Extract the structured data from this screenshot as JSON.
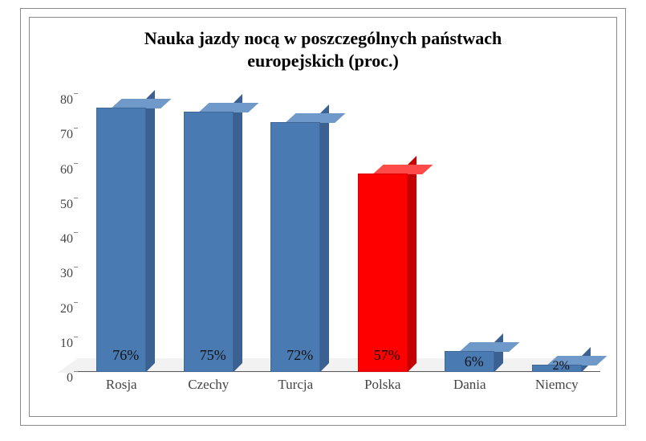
{
  "chart": {
    "type": "bar-3d",
    "title_line1": "Nauka jazdy nocą w poszczególnych państwach",
    "title_line2": "europejskich (proc.)",
    "title_fontsize": 22,
    "title_fontweight": "bold",
    "font_family": "Times New Roman",
    "background_color": "#ffffff",
    "border_color": "#8a8a8a",
    "axis_text_color": "#444444",
    "ylim": [
      0,
      80
    ],
    "ytick_step": 10,
    "yticks": [
      {
        "v": 0,
        "label": "0"
      },
      {
        "v": 10,
        "label": "10"
      },
      {
        "v": 20,
        "label": "20"
      },
      {
        "v": 30,
        "label": "30"
      },
      {
        "v": 40,
        "label": "40"
      },
      {
        "v": 50,
        "label": "50"
      },
      {
        "v": 60,
        "label": "60"
      },
      {
        "v": 70,
        "label": "70"
      },
      {
        "v": 80,
        "label": "80"
      }
    ],
    "grid": false,
    "bar_width_pct": 9.5,
    "bars": [
      {
        "label": "Rosja",
        "value": 76,
        "value_label": "76%",
        "front": "#4a7ab2",
        "side": "#3a6191",
        "top": "#6e99c8"
      },
      {
        "label": "Czechy",
        "value": 75,
        "value_label": "75%",
        "front": "#4a7ab2",
        "side": "#3a6191",
        "top": "#6e99c8"
      },
      {
        "label": "Turcja",
        "value": 72,
        "value_label": "72%",
        "front": "#4a7ab2",
        "side": "#3a6191",
        "top": "#6e99c8"
      },
      {
        "label": "Polska",
        "value": 57,
        "value_label": "57%",
        "front": "#ff0000",
        "side": "#c40000",
        "top": "#ff4a4a"
      },
      {
        "label": "Dania",
        "value": 6,
        "value_label": "6%",
        "front": "#4a7ab2",
        "side": "#3a6191",
        "top": "#6e99c8"
      },
      {
        "label": "Niemcy",
        "value": 2,
        "value_label": "2%",
        "front": "#4a7ab2",
        "side": "#3a6191",
        "top": "#6e99c8"
      }
    ]
  }
}
